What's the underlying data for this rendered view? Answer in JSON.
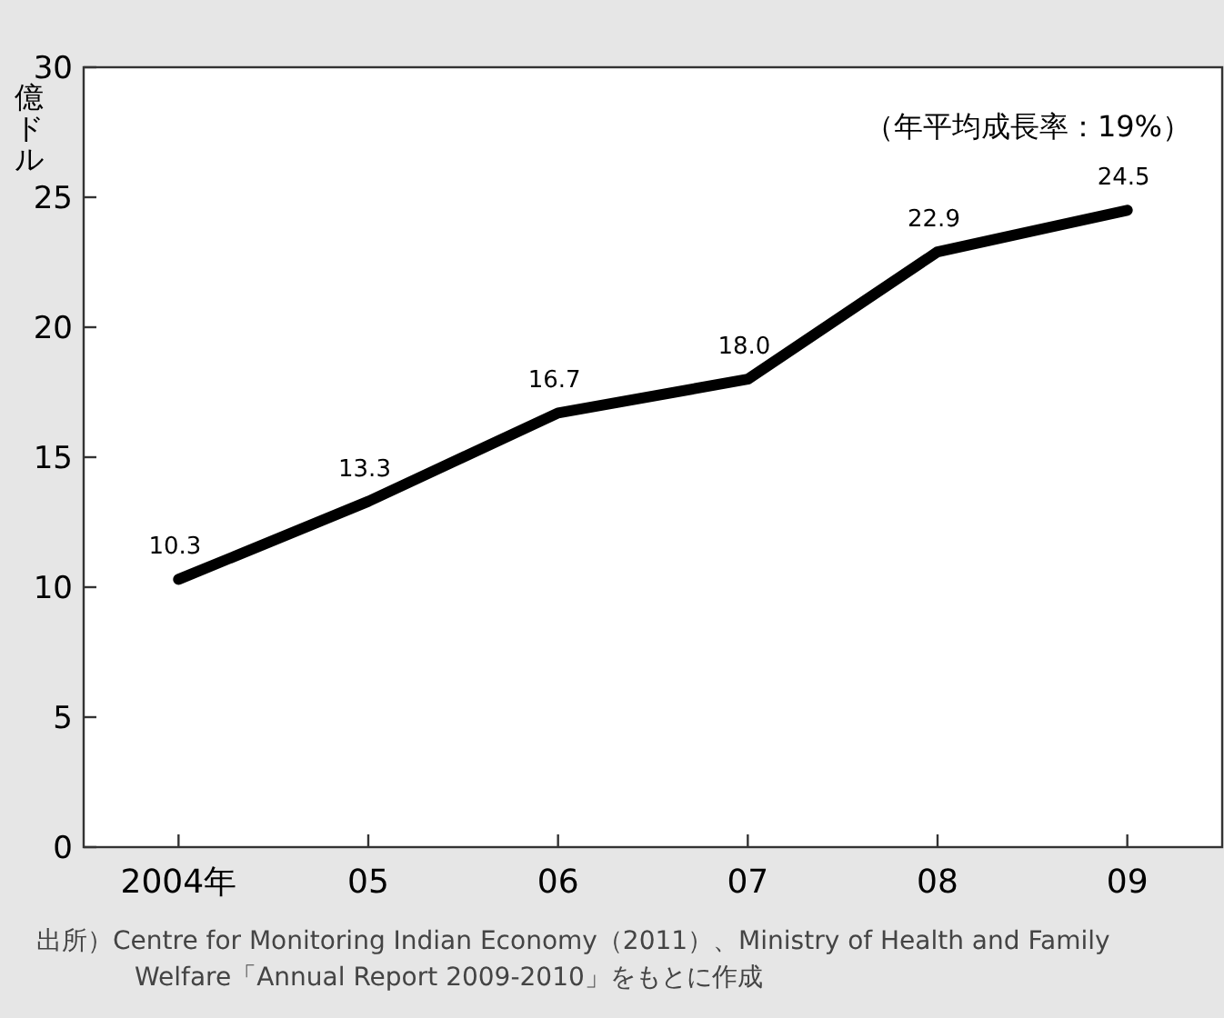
{
  "chart_data": {
    "type": "line",
    "ylabel": "億ドル",
    "categories": [
      "2004年",
      "05",
      "06",
      "07",
      "08",
      "09"
    ],
    "values": [
      10.3,
      13.3,
      16.7,
      18.0,
      22.9,
      24.5
    ],
    "color": "#000000",
    "ylim": [
      0,
      30
    ],
    "yticks": [
      0,
      5,
      10,
      15,
      20,
      25,
      30
    ],
    "value_labels": [
      "10.3",
      "13.3",
      "16.7",
      "18.0",
      "22.9",
      "24.5"
    ],
    "marker": "none",
    "line_style": "solid",
    "grid": false,
    "annotations": [
      "（年平均成長率：19%）",
      "出所）Centre for Monitoring Indian Economy（2011）、Ministry of Health and Family Welfare「Annual Report 2009-2010」をもとに作成"
    ]
  }
}
